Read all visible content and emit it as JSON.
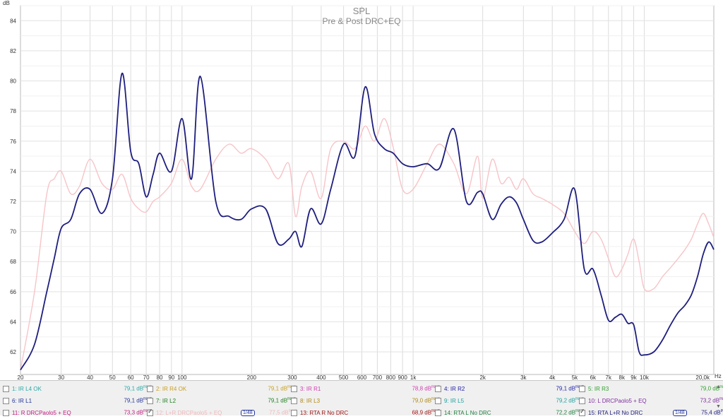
{
  "chart_data": {
    "type": "line",
    "title": "SPL",
    "subtitle": "Pre & Post DRC+EQ",
    "ylabel": "dB",
    "xunit": "Hz",
    "xscale": "log",
    "xlim": [
      20,
      20000
    ],
    "ylim": [
      60.5,
      85
    ],
    "grid": true,
    "yticks": [
      62,
      64,
      66,
      68,
      70,
      72,
      74,
      76,
      78,
      80,
      82,
      84
    ],
    "xticks": [
      {
        "v": 20,
        "label": "20"
      },
      {
        "v": 30,
        "label": "30"
      },
      {
        "v": 40,
        "label": "40"
      },
      {
        "v": 50,
        "label": "50"
      },
      {
        "v": 60,
        "label": "60"
      },
      {
        "v": 70,
        "label": "70"
      },
      {
        "v": 80,
        "label": "80"
      },
      {
        "v": 90,
        "label": "90"
      },
      {
        "v": 100,
        "label": "100"
      },
      {
        "v": 200,
        "label": "200"
      },
      {
        "v": 300,
        "label": "300"
      },
      {
        "v": 400,
        "label": "400"
      },
      {
        "v": 500,
        "label": "500"
      },
      {
        "v": 600,
        "label": "600"
      },
      {
        "v": 700,
        "label": "700"
      },
      {
        "v": 800,
        "label": "800"
      },
      {
        "v": 900,
        "label": "900"
      },
      {
        "v": 1000,
        "label": "1k"
      },
      {
        "v": 2000,
        "label": "2k"
      },
      {
        "v": 3000,
        "label": "3k"
      },
      {
        "v": 4000,
        "label": "4k"
      },
      {
        "v": 5000,
        "label": "5k"
      },
      {
        "v": 6000,
        "label": "6k"
      },
      {
        "v": 7000,
        "label": "7k"
      },
      {
        "v": 8000,
        "label": "8k"
      },
      {
        "v": 9000,
        "label": "9k"
      },
      {
        "v": 10000,
        "label": "10k"
      },
      {
        "v": 20000,
        "label": "20,0k"
      }
    ],
    "series": [
      {
        "name": "12: L+R DRCPaolo5 + EQ",
        "color": "#f7c4c8",
        "x": [
          20,
          23,
          26,
          28,
          30,
          33,
          36,
          40,
          45,
          50,
          55,
          60,
          65,
          70,
          75,
          80,
          90,
          100,
          110,
          120,
          140,
          160,
          180,
          200,
          230,
          260,
          290,
          310,
          330,
          360,
          400,
          440,
          500,
          560,
          620,
          680,
          750,
          820,
          900,
          1000,
          1150,
          1300,
          1500,
          1700,
          1900,
          2000,
          2200,
          2400,
          2600,
          2800,
          3000,
          3300,
          3600,
          4000,
          4500,
          5000,
          5500,
          6000,
          6500,
          7000,
          7500,
          8000,
          8500,
          9000,
          9500,
          10000,
          11000,
          12000,
          13000,
          14000,
          15000,
          16000,
          17000,
          18000,
          19000,
          20000
        ],
        "y": [
          60.8,
          66,
          72.5,
          73.5,
          74,
          72.5,
          73,
          74.8,
          73.2,
          72.8,
          73.8,
          72.2,
          71.5,
          71.3,
          72,
          72.3,
          73.2,
          74.8,
          73,
          72.8,
          74.8,
          75.8,
          75.2,
          75.5,
          74.8,
          73.5,
          74.5,
          71,
          73,
          74,
          72.2,
          75.5,
          76,
          75.5,
          77,
          76,
          77.5,
          75.6,
          72.8,
          72.8,
          74.5,
          75.8,
          74.5,
          72.5,
          75,
          72.2,
          74.8,
          73.2,
          73.6,
          72.8,
          73.5,
          72.5,
          72.2,
          71.8,
          71.2,
          70,
          69.2,
          70,
          69.5,
          68.2,
          67,
          67.5,
          68.5,
          69.5,
          68,
          66.2,
          66.2,
          67,
          67.6,
          68.2,
          68.8,
          69.5,
          70.5,
          71.2,
          70.5,
          69.6
        ]
      },
      {
        "name": "15: RTA L+R No DRC",
        "color": "#1e1e7e",
        "x": [
          20,
          23,
          26,
          28,
          30,
          33,
          36,
          40,
          45,
          50,
          55,
          60,
          65,
          70,
          75,
          80,
          90,
          100,
          110,
          120,
          140,
          160,
          180,
          200,
          230,
          260,
          290,
          310,
          330,
          360,
          400,
          440,
          500,
          560,
          620,
          680,
          750,
          820,
          900,
          1000,
          1150,
          1300,
          1500,
          1700,
          1900,
          2000,
          2200,
          2400,
          2600,
          2800,
          3000,
          3300,
          3600,
          4000,
          4500,
          5000,
          5500,
          6000,
          6500,
          7000,
          7500,
          8000,
          8500,
          9000,
          9500,
          10000,
          11000,
          12000,
          13000,
          14000,
          15000,
          16000,
          17000,
          18000,
          19000,
          20000
        ],
        "y": [
          60.8,
          62.5,
          66,
          68.2,
          70.2,
          70.8,
          72.5,
          72.8,
          71.2,
          73.5,
          80.5,
          75.3,
          74.5,
          72.3,
          73.8,
          75.2,
          74,
          77.5,
          73.5,
          80.3,
          72,
          71,
          70.8,
          71.5,
          71.5,
          69.2,
          69.5,
          70,
          69,
          71.5,
          70.5,
          72.8,
          75.8,
          75,
          79.6,
          76.5,
          75.5,
          75.2,
          74.5,
          74.3,
          74.5,
          74.2,
          76.8,
          72,
          72.6,
          72.5,
          70.8,
          71.8,
          72.3,
          71.9,
          70.8,
          69.4,
          69.3,
          69.9,
          70.8,
          72.8,
          67.5,
          67.5,
          65.8,
          64.1,
          64.3,
          64.5,
          63.9,
          63.8,
          62,
          61.8,
          62,
          62.8,
          63.8,
          64.6,
          65.1,
          65.8,
          67,
          68.5,
          69.3,
          68.8
        ]
      }
    ]
  },
  "legend": {
    "items": [
      {
        "id": "l1",
        "label": "1: IR L4 OK",
        "value": "79,1 dB",
        "checked": false,
        "color": "#2aa8a8"
      },
      {
        "id": "l2",
        "label": "2: IR R4 OK",
        "value": "79,1 dB",
        "checked": false,
        "color": "#c8a020"
      },
      {
        "id": "l3",
        "label": "3: IR R1",
        "value": "78,8 dB",
        "checked": false,
        "color": "#d040b0"
      },
      {
        "id": "l4",
        "label": "4: IR R2",
        "value": "79,1 dB",
        "checked": false,
        "color": "#2222aa"
      },
      {
        "id": "l5",
        "label": "5: IR R3",
        "value": "79,0 dB",
        "checked": false,
        "color": "#30a030"
      },
      {
        "id": "l6",
        "label": "6: IR L1",
        "value": "79,1 dB",
        "checked": false,
        "color": "#223399"
      },
      {
        "id": "l7",
        "label": "7: IR L2",
        "value": "79,1 dB",
        "checked": false,
        "color": "#208020"
      },
      {
        "id": "l8",
        "label": "8: IR L3",
        "value": "79,0 dB",
        "checked": false,
        "color": "#b08818"
      },
      {
        "id": "l9",
        "label": "9: IR L5",
        "value": "79,2 dB",
        "checked": false,
        "color": "#20a0a0"
      },
      {
        "id": "l10",
        "label": "10: L DRCPaolo5 + EQ",
        "value": "73,2 dB",
        "checked": false,
        "color": "#8030a0"
      },
      {
        "id": "l11",
        "label": "11: R DRCPaolo5 + EQ",
        "value": "73,3 dB",
        "checked": false,
        "color": "#c02080"
      },
      {
        "id": "l12",
        "label": "12: L+R DRCPaolo5 + EQ",
        "value": "77,5 dB",
        "checked": true,
        "color": "#f0b8bc",
        "smoothing": "1/48"
      },
      {
        "id": "l13",
        "label": "13: RTA R No DRC",
        "value": "68,9 dB",
        "checked": false,
        "color": "#a01818"
      },
      {
        "id": "l14",
        "label": "14: RTA L No DRC",
        "value": "72,2 dB",
        "checked": false,
        "color": "#208040"
      },
      {
        "id": "l15",
        "label": "15: RTA L+R No DRC",
        "value": "75,4 dB",
        "checked": true,
        "color": "#1e1e7e",
        "smoothing": "1/48"
      }
    ],
    "value_suffix": "INVC",
    "scroll_up": "▲",
    "scroll_down": "▼"
  }
}
